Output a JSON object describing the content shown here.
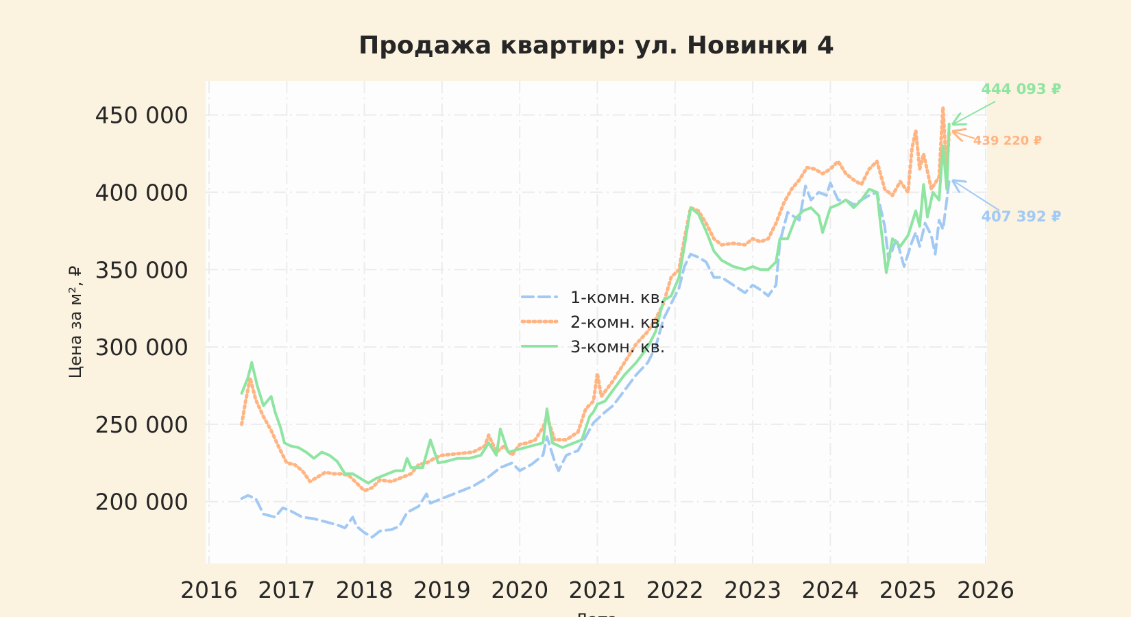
{
  "chart_data": {
    "type": "line",
    "title": "Продажа квартир: ул. Новинки 4",
    "xlabel": "Дата",
    "ylabel": "Цена за м², ₽",
    "xlim": [
      2016.0,
      2026.0
    ],
    "ylim": [
      160000,
      472000
    ],
    "x_ticks": [
      "2016",
      "2017",
      "2018",
      "2019",
      "2020",
      "2021",
      "2022",
      "2023",
      "2024",
      "2025",
      "2026"
    ],
    "y_ticks": [
      {
        "value": 200000,
        "label": "200 000"
      },
      {
        "value": 250000,
        "label": "250 000"
      },
      {
        "value": 300000,
        "label": "300 000"
      },
      {
        "value": 350000,
        "label": "350 000"
      },
      {
        "value": 400000,
        "label": "400 000"
      },
      {
        "value": 450000,
        "label": "450 000"
      }
    ],
    "grid": true,
    "legend_position": "center",
    "series": [
      {
        "name": "1-комн. кв.",
        "color": "#a1c9f4",
        "style": "dashed",
        "points": [
          [
            2016.42,
            202000
          ],
          [
            2016.5,
            204000
          ],
          [
            2016.6,
            202000
          ],
          [
            2016.7,
            192000
          ],
          [
            2016.85,
            190000
          ],
          [
            2016.95,
            196000
          ],
          [
            2017.05,
            194000
          ],
          [
            2017.2,
            190000
          ],
          [
            2017.35,
            189000
          ],
          [
            2017.5,
            187000
          ],
          [
            2017.65,
            185000
          ],
          [
            2017.75,
            183000
          ],
          [
            2017.85,
            190000
          ],
          [
            2017.9,
            184000
          ],
          [
            2018.0,
            180000
          ],
          [
            2018.1,
            177000
          ],
          [
            2018.2,
            181000
          ],
          [
            2018.35,
            182000
          ],
          [
            2018.45,
            184000
          ],
          [
            2018.55,
            193000
          ],
          [
            2018.7,
            197000
          ],
          [
            2018.8,
            205000
          ],
          [
            2018.85,
            199000
          ],
          [
            2019.0,
            202000
          ],
          [
            2019.2,
            206000
          ],
          [
            2019.4,
            210000
          ],
          [
            2019.6,
            216000
          ],
          [
            2019.75,
            222000
          ],
          [
            2019.9,
            225000
          ],
          [
            2020.0,
            220000
          ],
          [
            2020.15,
            224000
          ],
          [
            2020.3,
            230000
          ],
          [
            2020.35,
            242000
          ],
          [
            2020.45,
            226000
          ],
          [
            2020.5,
            220000
          ],
          [
            2020.6,
            230000
          ],
          [
            2020.75,
            233000
          ],
          [
            2020.85,
            242000
          ],
          [
            2020.95,
            251000
          ],
          [
            2021.1,
            258000
          ],
          [
            2021.2,
            262000
          ],
          [
            2021.35,
            272000
          ],
          [
            2021.5,
            282000
          ],
          [
            2021.65,
            290000
          ],
          [
            2021.75,
            300000
          ],
          [
            2021.85,
            318000
          ],
          [
            2021.95,
            328000
          ],
          [
            2022.05,
            338000
          ],
          [
            2022.12,
            352000
          ],
          [
            2022.2,
            360000
          ],
          [
            2022.3,
            358000
          ],
          [
            2022.4,
            355000
          ],
          [
            2022.5,
            345000
          ],
          [
            2022.6,
            345000
          ],
          [
            2022.75,
            340000
          ],
          [
            2022.9,
            335000
          ],
          [
            2023.0,
            340000
          ],
          [
            2023.1,
            337000
          ],
          [
            2023.2,
            333000
          ],
          [
            2023.3,
            340000
          ],
          [
            2023.35,
            368000
          ],
          [
            2023.45,
            387000
          ],
          [
            2023.6,
            382000
          ],
          [
            2023.68,
            404000
          ],
          [
            2023.75,
            395000
          ],
          [
            2023.85,
            400000
          ],
          [
            2023.95,
            398000
          ],
          [
            2024.0,
            406000
          ],
          [
            2024.1,
            395000
          ],
          [
            2024.2,
            395000
          ],
          [
            2024.3,
            392000
          ],
          [
            2024.4,
            395000
          ],
          [
            2024.5,
            398000
          ],
          [
            2024.6,
            400000
          ],
          [
            2024.7,
            378000
          ],
          [
            2024.75,
            356000
          ],
          [
            2024.85,
            370000
          ],
          [
            2024.95,
            352000
          ],
          [
            2025.05,
            368000
          ],
          [
            2025.1,
            374000
          ],
          [
            2025.15,
            365000
          ],
          [
            2025.22,
            380000
          ],
          [
            2025.3,
            372000
          ],
          [
            2025.35,
            360000
          ],
          [
            2025.4,
            382000
          ],
          [
            2025.45,
            376000
          ],
          [
            2025.5,
            395000
          ],
          [
            2025.53,
            407392
          ]
        ]
      },
      {
        "name": "2-комн. кв.",
        "color": "#ffb482",
        "style": "dotted",
        "points": [
          [
            2016.42,
            250000
          ],
          [
            2016.47,
            265000
          ],
          [
            2016.53,
            280000
          ],
          [
            2016.6,
            266000
          ],
          [
            2016.7,
            255000
          ],
          [
            2016.8,
            246000
          ],
          [
            2016.9,
            235000
          ],
          [
            2017.0,
            225000
          ],
          [
            2017.1,
            224000
          ],
          [
            2017.2,
            220000
          ],
          [
            2017.3,
            213000
          ],
          [
            2017.4,
            216000
          ],
          [
            2017.5,
            219000
          ],
          [
            2017.6,
            218000
          ],
          [
            2017.7,
            218000
          ],
          [
            2017.8,
            217000
          ],
          [
            2017.9,
            212000
          ],
          [
            2018.0,
            207000
          ],
          [
            2018.1,
            209000
          ],
          [
            2018.2,
            214000
          ],
          [
            2018.35,
            213000
          ],
          [
            2018.5,
            216000
          ],
          [
            2018.6,
            218000
          ],
          [
            2018.7,
            224000
          ],
          [
            2018.8,
            225000
          ],
          [
            2018.9,
            228000
          ],
          [
            2019.0,
            230000
          ],
          [
            2019.2,
            231000
          ],
          [
            2019.4,
            232000
          ],
          [
            2019.55,
            236000
          ],
          [
            2019.6,
            243000
          ],
          [
            2019.7,
            232000
          ],
          [
            2019.8,
            236000
          ],
          [
            2019.9,
            230000
          ],
          [
            2020.0,
            237000
          ],
          [
            2020.1,
            238000
          ],
          [
            2020.2,
            240000
          ],
          [
            2020.3,
            248000
          ],
          [
            2020.35,
            255000
          ],
          [
            2020.45,
            240000
          ],
          [
            2020.6,
            240000
          ],
          [
            2020.75,
            245000
          ],
          [
            2020.85,
            260000
          ],
          [
            2020.95,
            265000
          ],
          [
            2021.0,
            283000
          ],
          [
            2021.05,
            268000
          ],
          [
            2021.2,
            278000
          ],
          [
            2021.35,
            290000
          ],
          [
            2021.5,
            302000
          ],
          [
            2021.65,
            310000
          ],
          [
            2021.75,
            318000
          ],
          [
            2021.85,
            328000
          ],
          [
            2021.95,
            345000
          ],
          [
            2022.05,
            350000
          ],
          [
            2022.12,
            370000
          ],
          [
            2022.2,
            390000
          ],
          [
            2022.3,
            388000
          ],
          [
            2022.4,
            380000
          ],
          [
            2022.5,
            370000
          ],
          [
            2022.6,
            366000
          ],
          [
            2022.75,
            367000
          ],
          [
            2022.9,
            366000
          ],
          [
            2023.0,
            370000
          ],
          [
            2023.1,
            368000
          ],
          [
            2023.2,
            370000
          ],
          [
            2023.3,
            380000
          ],
          [
            2023.4,
            393000
          ],
          [
            2023.5,
            402000
          ],
          [
            2023.6,
            408000
          ],
          [
            2023.7,
            416000
          ],
          [
            2023.8,
            415000
          ],
          [
            2023.9,
            412000
          ],
          [
            2024.0,
            415000
          ],
          [
            2024.1,
            420000
          ],
          [
            2024.2,
            412000
          ],
          [
            2024.3,
            408000
          ],
          [
            2024.4,
            405000
          ],
          [
            2024.5,
            415000
          ],
          [
            2024.6,
            420000
          ],
          [
            2024.7,
            402000
          ],
          [
            2024.8,
            398000
          ],
          [
            2024.9,
            407000
          ],
          [
            2025.0,
            400000
          ],
          [
            2025.05,
            428000
          ],
          [
            2025.1,
            440000
          ],
          [
            2025.15,
            415000
          ],
          [
            2025.2,
            425000
          ],
          [
            2025.3,
            402000
          ],
          [
            2025.4,
            410000
          ],
          [
            2025.45,
            455000
          ],
          [
            2025.5,
            412000
          ],
          [
            2025.53,
            439220
          ]
        ]
      },
      {
        "name": "3-комн. кв.",
        "color": "#8de5a1",
        "style": "solid",
        "points": [
          [
            2016.42,
            270000
          ],
          [
            2016.5,
            280000
          ],
          [
            2016.55,
            290000
          ],
          [
            2016.62,
            275000
          ],
          [
            2016.7,
            262000
          ],
          [
            2016.8,
            268000
          ],
          [
            2016.85,
            258000
          ],
          [
            2016.92,
            248000
          ],
          [
            2016.97,
            238000
          ],
          [
            2017.05,
            236000
          ],
          [
            2017.15,
            235000
          ],
          [
            2017.25,
            232000
          ],
          [
            2017.35,
            228000
          ],
          [
            2017.45,
            232000
          ],
          [
            2017.55,
            230000
          ],
          [
            2017.65,
            226000
          ],
          [
            2017.75,
            218000
          ],
          [
            2017.85,
            218000
          ],
          [
            2017.95,
            215000
          ],
          [
            2018.05,
            212000
          ],
          [
            2018.15,
            215000
          ],
          [
            2018.3,
            218000
          ],
          [
            2018.4,
            220000
          ],
          [
            2018.5,
            220000
          ],
          [
            2018.55,
            228000
          ],
          [
            2018.6,
            222000
          ],
          [
            2018.75,
            222000
          ],
          [
            2018.85,
            240000
          ],
          [
            2018.95,
            225000
          ],
          [
            2019.05,
            226000
          ],
          [
            2019.2,
            228000
          ],
          [
            2019.35,
            228000
          ],
          [
            2019.5,
            230000
          ],
          [
            2019.6,
            238000
          ],
          [
            2019.7,
            230000
          ],
          [
            2019.75,
            247000
          ],
          [
            2019.85,
            232000
          ],
          [
            2020.0,
            234000
          ],
          [
            2020.15,
            236000
          ],
          [
            2020.3,
            238000
          ],
          [
            2020.35,
            260000
          ],
          [
            2020.42,
            238000
          ],
          [
            2020.55,
            235000
          ],
          [
            2020.7,
            238000
          ],
          [
            2020.8,
            240000
          ],
          [
            2020.9,
            255000
          ],
          [
            2020.95,
            258000
          ],
          [
            2021.0,
            263000
          ],
          [
            2021.1,
            265000
          ],
          [
            2021.2,
            272000
          ],
          [
            2021.35,
            282000
          ],
          [
            2021.5,
            290000
          ],
          [
            2021.65,
            300000
          ],
          [
            2021.75,
            310000
          ],
          [
            2021.85,
            330000
          ],
          [
            2021.95,
            333000
          ],
          [
            2022.05,
            345000
          ],
          [
            2022.12,
            365000
          ],
          [
            2022.2,
            390000
          ],
          [
            2022.3,
            386000
          ],
          [
            2022.4,
            375000
          ],
          [
            2022.5,
            362000
          ],
          [
            2022.6,
            356000
          ],
          [
            2022.75,
            352000
          ],
          [
            2022.9,
            350000
          ],
          [
            2023.0,
            352000
          ],
          [
            2023.1,
            350000
          ],
          [
            2023.2,
            350000
          ],
          [
            2023.3,
            355000
          ],
          [
            2023.35,
            370000
          ],
          [
            2023.45,
            370000
          ],
          [
            2023.55,
            383000
          ],
          [
            2023.65,
            388000
          ],
          [
            2023.75,
            390000
          ],
          [
            2023.85,
            385000
          ],
          [
            2023.9,
            374000
          ],
          [
            2024.0,
            390000
          ],
          [
            2024.1,
            392000
          ],
          [
            2024.2,
            395000
          ],
          [
            2024.3,
            390000
          ],
          [
            2024.4,
            395000
          ],
          [
            2024.5,
            402000
          ],
          [
            2024.6,
            400000
          ],
          [
            2024.65,
            378000
          ],
          [
            2024.72,
            348000
          ],
          [
            2024.8,
            370000
          ],
          [
            2024.9,
            365000
          ],
          [
            2025.0,
            372000
          ],
          [
            2025.05,
            380000
          ],
          [
            2025.1,
            388000
          ],
          [
            2025.15,
            378000
          ],
          [
            2025.2,
            405000
          ],
          [
            2025.25,
            384000
          ],
          [
            2025.32,
            400000
          ],
          [
            2025.4,
            395000
          ],
          [
            2025.45,
            430000
          ],
          [
            2025.5,
            402000
          ],
          [
            2025.53,
            444093
          ]
        ]
      }
    ],
    "annotations": [
      {
        "series": "3-комн. кв.",
        "text": "444 093 ₽",
        "x": 2025.53,
        "y": 444093,
        "color": "#8de5a1"
      },
      {
        "series": "2-комн. кв.",
        "text": "439 220 ₽",
        "x": 2025.53,
        "y": 439220,
        "color": "#ffb482"
      },
      {
        "series": "1-комн. кв.",
        "text": "407 392 ₽",
        "x": 2025.53,
        "y": 407392,
        "color": "#a1c9f4"
      }
    ]
  }
}
